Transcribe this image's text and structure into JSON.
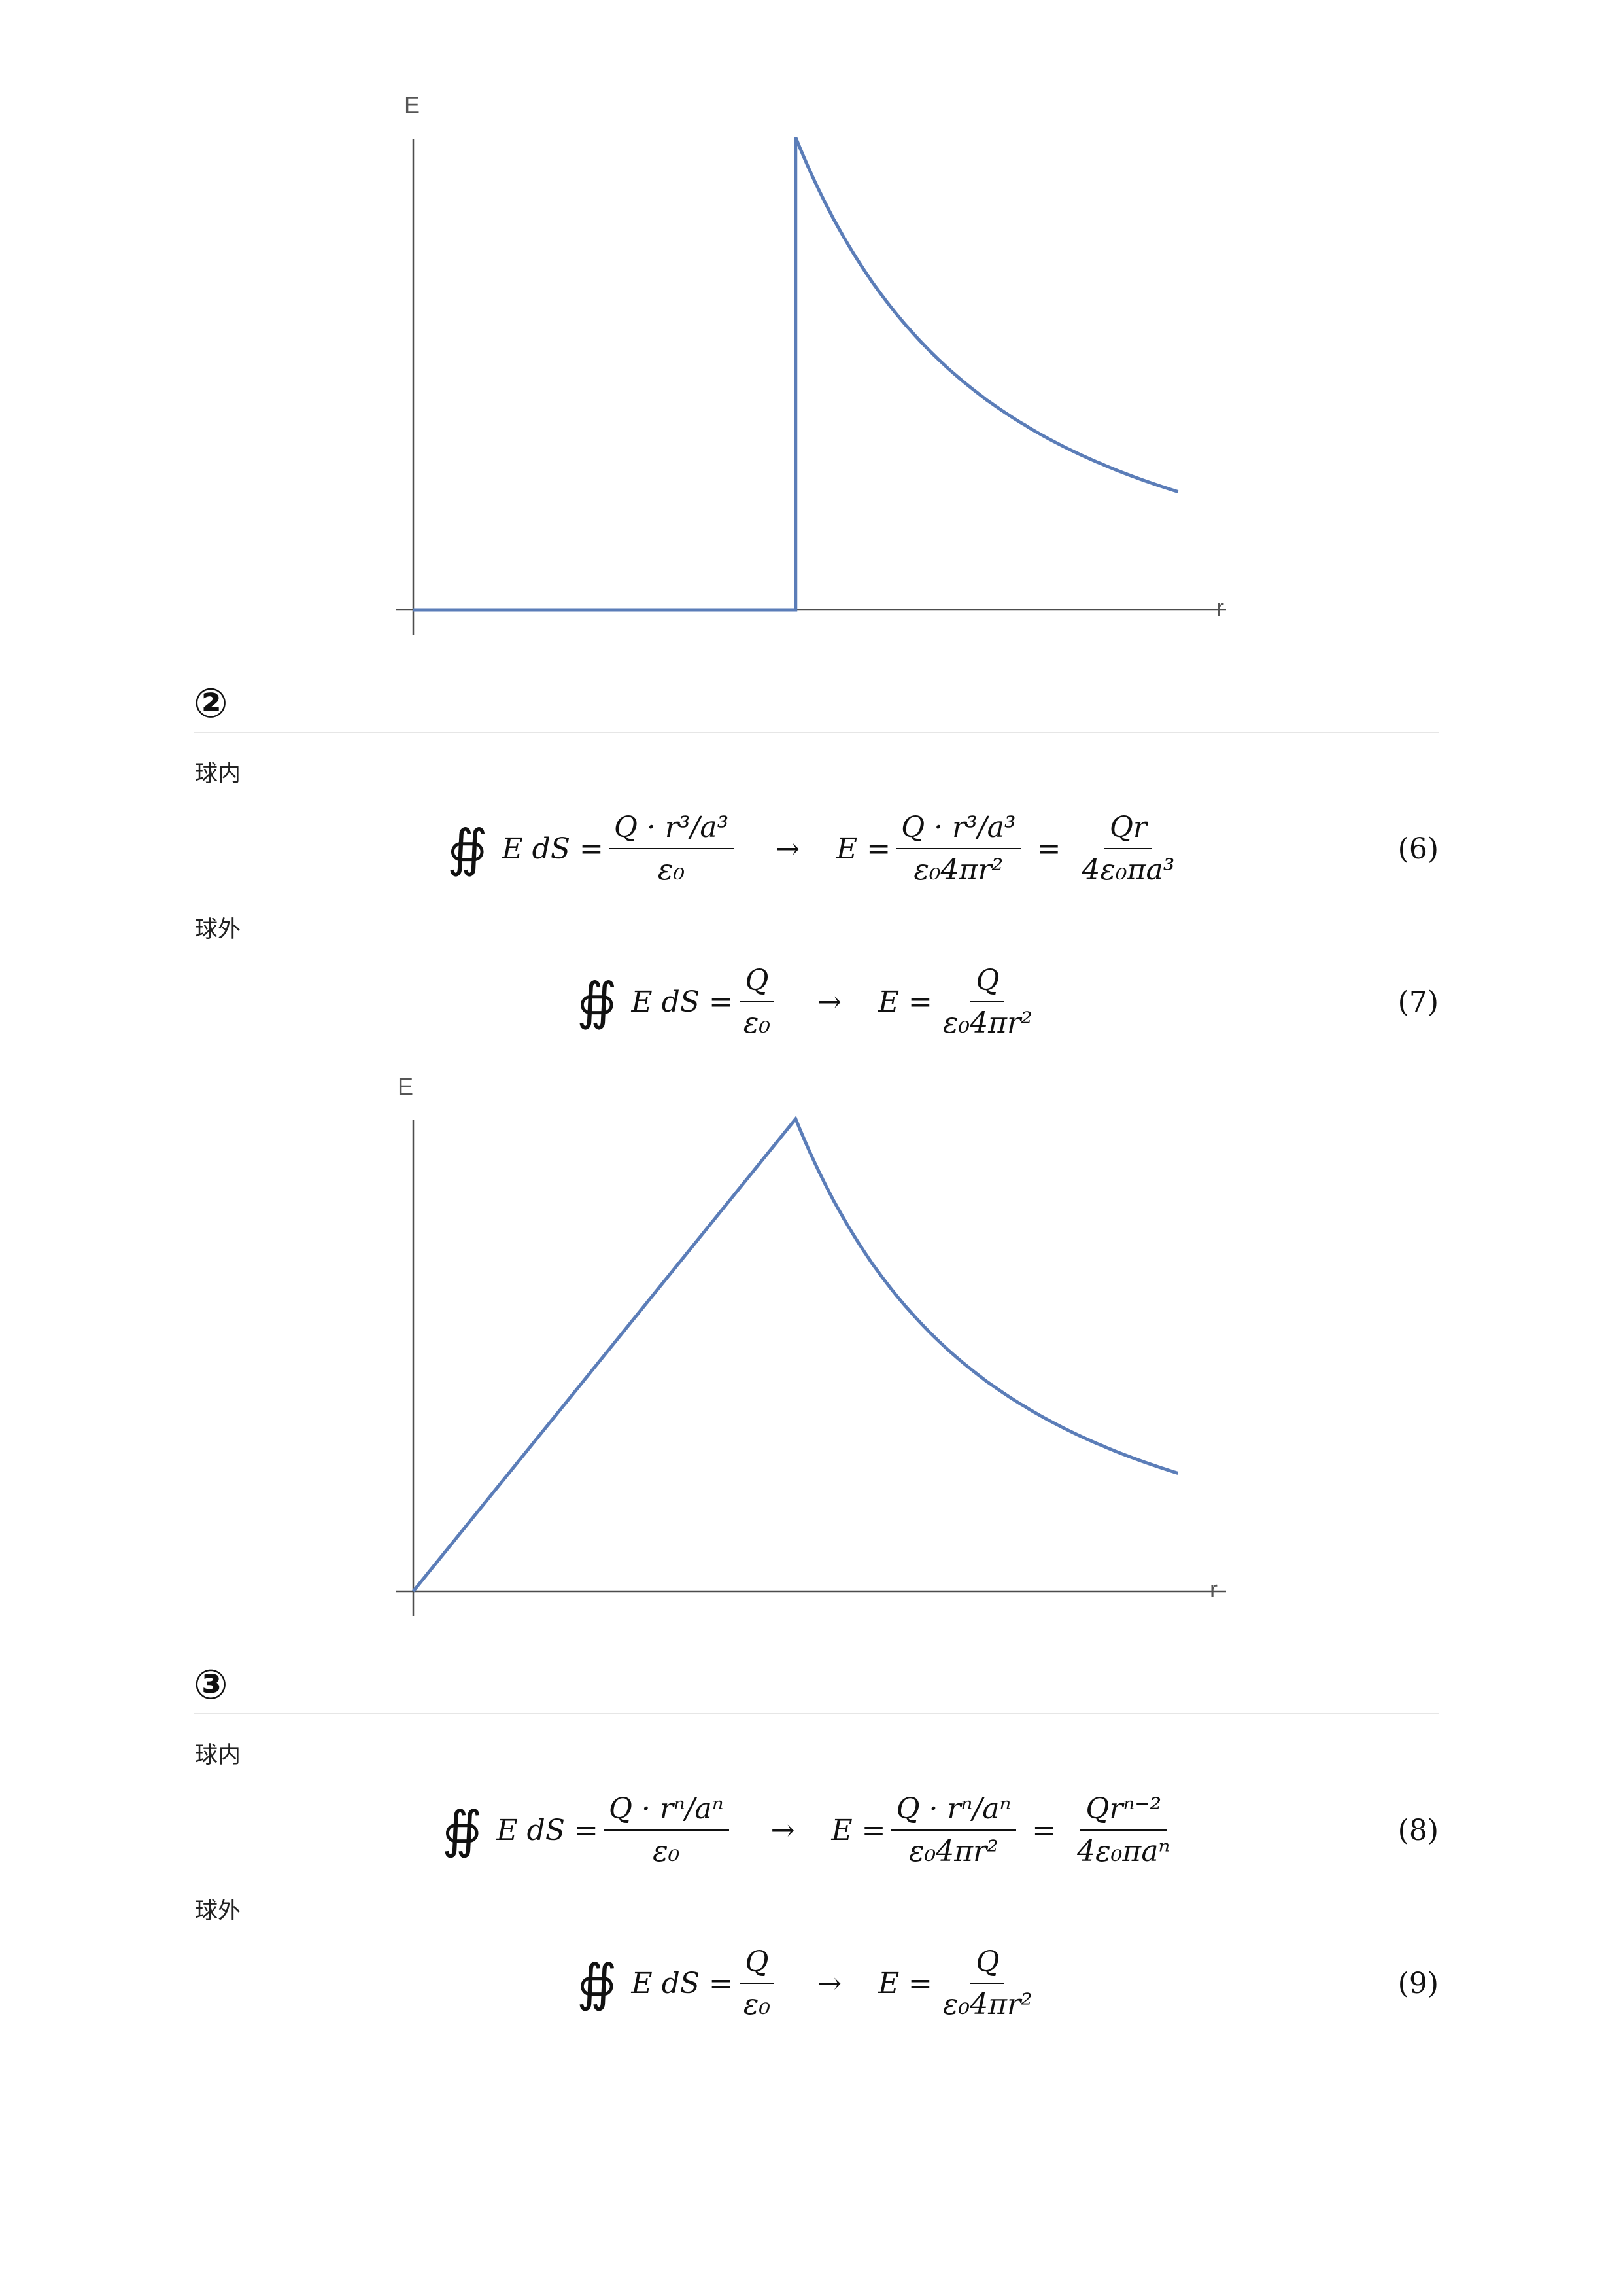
{
  "colors": {
    "curve": "#5b7db8",
    "axis": "#4d4d4d"
  },
  "chart_data": [
    {
      "type": "line",
      "xlabel": "r",
      "ylabel": "E",
      "xlim": [
        0,
        2.1
      ],
      "ylim": [
        0,
        1
      ],
      "grid": false,
      "series": [
        {
          "x": [
            0,
            1,
            1,
            1.1,
            1.2,
            1.3,
            1.4,
            1.5,
            1.6,
            1.7,
            1.8,
            1.9,
            2.0
          ],
          "y": [
            0,
            0,
            1,
            0.826,
            0.694,
            0.592,
            0.51,
            0.444,
            0.391,
            0.346,
            0.309,
            0.277,
            0.25
          ]
        }
      ]
    },
    {
      "type": "line",
      "xlabel": "r",
      "ylabel": "E",
      "xlim": [
        0,
        2.1
      ],
      "ylim": [
        0,
        1
      ],
      "grid": false,
      "series": [
        {
          "x": [
            0,
            1,
            1.1,
            1.2,
            1.3,
            1.4,
            1.5,
            1.6,
            1.7,
            1.8,
            1.9,
            2.0
          ],
          "y": [
            0,
            1,
            0.826,
            0.694,
            0.592,
            0.51,
            0.444,
            0.391,
            0.346,
            0.309,
            0.277,
            0.25
          ]
        }
      ]
    }
  ],
  "sections": [
    {
      "marker": "②",
      "inside_label": "球内",
      "outside_label": "球外",
      "eq_inside": {
        "lhs": "E dS =",
        "frac1_num": "Q · r³/a³",
        "frac1_den": "ε₀",
        "arrow": "→",
        "mid": "E =",
        "frac2_num": "Q · r³/a³",
        "frac2_den": "ε₀4πr²",
        "eq": "=",
        "frac3_num": "Qr",
        "frac3_den": "4ε₀πa³",
        "number": "(6)"
      },
      "eq_outside": {
        "lhs": "E dS =",
        "frac1_num": "Q",
        "frac1_den": "ε₀",
        "arrow": "→",
        "mid": "E =",
        "frac2_num": "Q",
        "frac2_den": "ε₀4πr²",
        "number": "(7)"
      }
    },
    {
      "marker": "③",
      "inside_label": "球内",
      "outside_label": "球外",
      "eq_inside": {
        "lhs": "E dS =",
        "frac1_num": "Q · rⁿ/aⁿ",
        "frac1_den": "ε₀",
        "arrow": "→",
        "mid": "E =",
        "frac2_num": "Q · rⁿ/aⁿ",
        "frac2_den": "ε₀4πr²",
        "eq": "=",
        "frac3_num": "Qrⁿ⁻²",
        "frac3_den": "4ε₀πaⁿ",
        "number": "(8)"
      },
      "eq_outside": {
        "lhs": "E dS =",
        "frac1_num": "Q",
        "frac1_den": "ε₀",
        "arrow": "→",
        "mid": "E =",
        "frac2_num": "Q",
        "frac2_den": "ε₀4πr²",
        "number": "(9)"
      }
    }
  ],
  "integral_symbol": "∯"
}
